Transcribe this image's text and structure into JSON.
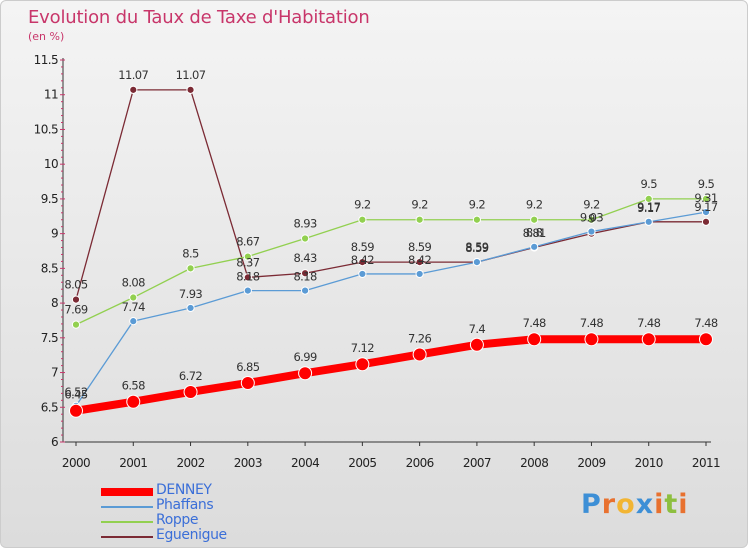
{
  "chart_data": {
    "type": "line",
    "title": "Evolution du Taux de Taxe d'Habitation",
    "unit_label": "(en %)",
    "xlabel": "",
    "ylabel": "",
    "x": [
      "2000",
      "2001",
      "2002",
      "2003",
      "2004",
      "2005",
      "2006",
      "2007",
      "2008",
      "2009",
      "2010",
      "2011"
    ],
    "ylim": [
      6,
      11.5
    ],
    "y_ticks": [
      "6",
      "6.5",
      "7",
      "7.5",
      "8",
      "8.5",
      "9",
      "9.5",
      "10",
      "10.5",
      "11",
      "11.5"
    ],
    "grid": false,
    "legend_position": "bottom-left",
    "series": [
      {
        "name": "DENNEY",
        "color": "#ff0000",
        "values": [
          6.45,
          6.58,
          6.72,
          6.85,
          6.99,
          7.12,
          7.26,
          7.4,
          7.48,
          7.48,
          7.48,
          7.48
        ],
        "labels": [
          "6.45",
          "6.58",
          "6.72",
          "6.85",
          "6.99",
          "7.12",
          "7.26",
          "7.4",
          "7.48",
          "7.48",
          "7.48",
          "7.48"
        ]
      },
      {
        "name": "Phaffans",
        "color": "#5b9bd5",
        "values": [
          6.52,
          7.74,
          7.93,
          8.18,
          8.18,
          8.42,
          8.42,
          8.59,
          8.81,
          9.03,
          9.17,
          9.31
        ],
        "labels": [
          "6.52",
          "7.74",
          "7.93",
          "8.18",
          "8.18",
          "8.42",
          "8.42",
          "8.59",
          "8.81",
          "9.03",
          "9.17",
          "9.31"
        ]
      },
      {
        "name": "Roppe",
        "color": "#92d050",
        "values": [
          7.69,
          8.08,
          8.5,
          8.67,
          8.93,
          9.2,
          9.2,
          9.2,
          9.2,
          9.2,
          9.5,
          9.5
        ],
        "labels": [
          "7.69",
          "8.08",
          "8.5",
          "8.67",
          "8.93",
          "9.2",
          "9.2",
          "9.2",
          "9.2",
          "9.2",
          "9.5",
          "9.5"
        ]
      },
      {
        "name": "Eguenigue",
        "color": "#7b2a34",
        "values": [
          8.05,
          11.07,
          11.07,
          8.37,
          8.43,
          8.59,
          8.59,
          8.59,
          8.8,
          9.0,
          9.17,
          9.17
        ],
        "labels": [
          "8.05",
          "11.07",
          "11.07",
          "8.37",
          "8.43",
          "8.59",
          "8.59",
          "8.59",
          "8.8",
          "9",
          "9.17",
          "9.17"
        ]
      }
    ]
  },
  "brand": {
    "letters": [
      "P",
      "r",
      "o",
      "x",
      "i",
      "t",
      "i"
    ],
    "colors": [
      "#3d8fd6",
      "#e8712f",
      "#f2b533",
      "#3d8fd6",
      "#e8712f",
      "#8dbf3f",
      "#e8712f"
    ]
  }
}
